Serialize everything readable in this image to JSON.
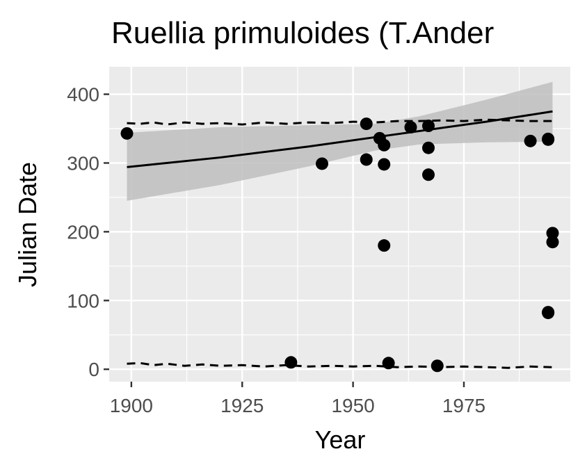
{
  "chart_data": {
    "type": "scatter",
    "title": "Ruellia primuloides (T.Ander",
    "xlabel": "Year",
    "ylabel": "Julian Date",
    "xlim": [
      1895,
      1999
    ],
    "ylim": [
      -18,
      440
    ],
    "x_ticks": [
      1900,
      1925,
      1950,
      1975
    ],
    "y_ticks": [
      0,
      100,
      200,
      300,
      400
    ],
    "grid": true,
    "legend": "none",
    "colors": {
      "panel": "#ebebeb",
      "grid": "#ffffff",
      "points": "#000000",
      "ribbon": "#bebebe",
      "line": "#000000"
    },
    "points": [
      {
        "x": 1899,
        "y": 343
      },
      {
        "x": 1936,
        "y": 10
      },
      {
        "x": 1943,
        "y": 299
      },
      {
        "x": 1953,
        "y": 357
      },
      {
        "x": 1953,
        "y": 305
      },
      {
        "x": 1956,
        "y": 336
      },
      {
        "x": 1957,
        "y": 326
      },
      {
        "x": 1957,
        "y": 298
      },
      {
        "x": 1957,
        "y": 180
      },
      {
        "x": 1958,
        "y": 9
      },
      {
        "x": 1963,
        "y": 352
      },
      {
        "x": 1967,
        "y": 354
      },
      {
        "x": 1967,
        "y": 322
      },
      {
        "x": 1967,
        "y": 283
      },
      {
        "x": 1969,
        "y": 5
      },
      {
        "x": 1990,
        "y": 332
      },
      {
        "x": 1994,
        "y": 335
      },
      {
        "x": 1994,
        "y": 334
      },
      {
        "x": 1994,
        "y": 83
      },
      {
        "x": 1994,
        "y": 82
      },
      {
        "x": 1995,
        "y": 198
      },
      {
        "x": 1995,
        "y": 185
      }
    ],
    "trend_line": [
      {
        "x": 1899,
        "y": 294
      },
      {
        "x": 1920,
        "y": 308
      },
      {
        "x": 1940,
        "y": 324
      },
      {
        "x": 1960,
        "y": 342
      },
      {
        "x": 1980,
        "y": 360
      },
      {
        "x": 1995,
        "y": 375
      }
    ],
    "confidence_band": {
      "upper": [
        {
          "x": 1899,
          "y": 344
        },
        {
          "x": 1920,
          "y": 352
        },
        {
          "x": 1940,
          "y": 355
        },
        {
          "x": 1955,
          "y": 357
        },
        {
          "x": 1965,
          "y": 368
        },
        {
          "x": 1980,
          "y": 392
        },
        {
          "x": 1995,
          "y": 418
        }
      ],
      "lower": [
        {
          "x": 1899,
          "y": 245
        },
        {
          "x": 1920,
          "y": 268
        },
        {
          "x": 1940,
          "y": 295
        },
        {
          "x": 1955,
          "y": 318
        },
        {
          "x": 1965,
          "y": 327
        },
        {
          "x": 1980,
          "y": 330
        },
        {
          "x": 1995,
          "y": 331
        }
      ]
    },
    "dashed_upper": [
      {
        "x": 1899,
        "y": 358
      },
      {
        "x": 1902,
        "y": 357
      },
      {
        "x": 1905,
        "y": 359
      },
      {
        "x": 1908,
        "y": 356
      },
      {
        "x": 1912,
        "y": 359
      },
      {
        "x": 1916,
        "y": 357
      },
      {
        "x": 1920,
        "y": 358
      },
      {
        "x": 1925,
        "y": 356
      },
      {
        "x": 1930,
        "y": 359
      },
      {
        "x": 1935,
        "y": 357
      },
      {
        "x": 1940,
        "y": 359
      },
      {
        "x": 1945,
        "y": 358
      },
      {
        "x": 1950,
        "y": 360
      },
      {
        "x": 1955,
        "y": 359
      },
      {
        "x": 1960,
        "y": 361
      },
      {
        "x": 1965,
        "y": 361
      },
      {
        "x": 1970,
        "y": 362
      },
      {
        "x": 1975,
        "y": 361
      },
      {
        "x": 1980,
        "y": 363
      },
      {
        "x": 1985,
        "y": 362
      },
      {
        "x": 1990,
        "y": 361
      },
      {
        "x": 1995,
        "y": 361
      }
    ],
    "dashed_lower": [
      {
        "x": 1899,
        "y": 8
      },
      {
        "x": 1902,
        "y": 9
      },
      {
        "x": 1905,
        "y": 6
      },
      {
        "x": 1908,
        "y": 8
      },
      {
        "x": 1912,
        "y": 5
      },
      {
        "x": 1916,
        "y": 7
      },
      {
        "x": 1920,
        "y": 5
      },
      {
        "x": 1925,
        "y": 6
      },
      {
        "x": 1930,
        "y": 4
      },
      {
        "x": 1935,
        "y": 6
      },
      {
        "x": 1940,
        "y": 4
      },
      {
        "x": 1945,
        "y": 5
      },
      {
        "x": 1950,
        "y": 4
      },
      {
        "x": 1955,
        "y": 5
      },
      {
        "x": 1960,
        "y": 3
      },
      {
        "x": 1965,
        "y": 4
      },
      {
        "x": 1970,
        "y": 3
      },
      {
        "x": 1975,
        "y": 4
      },
      {
        "x": 1980,
        "y": 3
      },
      {
        "x": 1985,
        "y": 2
      },
      {
        "x": 1990,
        "y": 4
      },
      {
        "x": 1995,
        "y": 3
      }
    ]
  }
}
